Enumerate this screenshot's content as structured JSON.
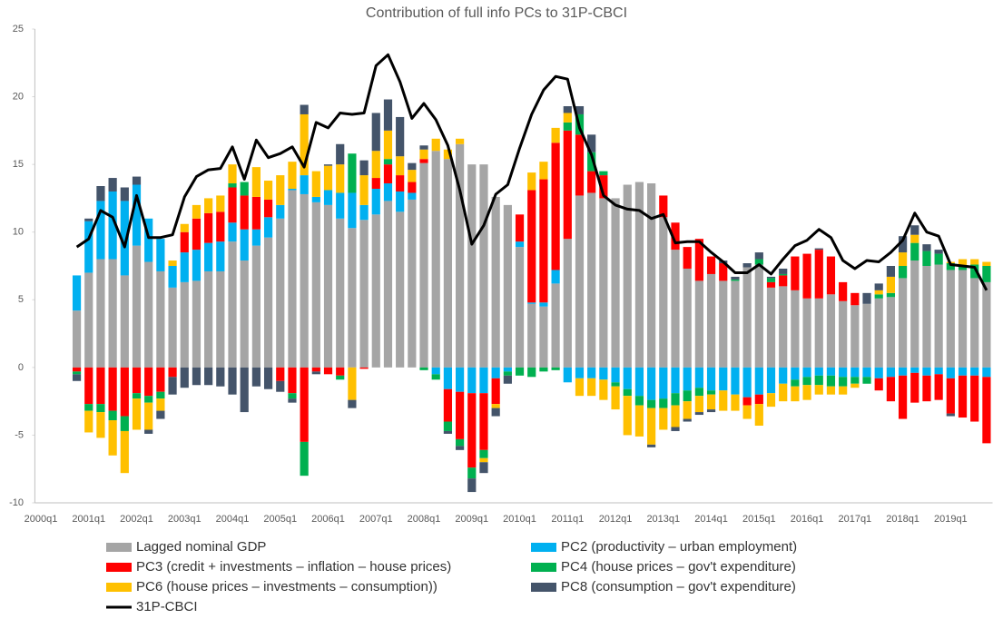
{
  "chart_data": {
    "type": "bar",
    "stacked": true,
    "title": "Contribution of full info PCs to 31P-CBCI",
    "categories": [
      "2000q1",
      null,
      null,
      null,
      "2001q1",
      null,
      null,
      null,
      "2002q1",
      null,
      null,
      null,
      "2003q1",
      null,
      null,
      null,
      "2004q1",
      null,
      null,
      null,
      "2005q1",
      null,
      null,
      null,
      "2006q1",
      null,
      null,
      null,
      "2007q1",
      null,
      null,
      null,
      "2008q1",
      null,
      null,
      null,
      "2009q1",
      null,
      null,
      null,
      "2010q1",
      null,
      null,
      null,
      "2011q1",
      null,
      null,
      null,
      "2012q1",
      null,
      null,
      null,
      "2013q1",
      null,
      null,
      null,
      "2014q1",
      null,
      null,
      null,
      "2015q1",
      null,
      null,
      null,
      "2016q1",
      null,
      null,
      null,
      "2017q1",
      null,
      null,
      null,
      "2018q1",
      null,
      null,
      null,
      "2019q1",
      null,
      null,
      null
    ],
    "ylim": [
      -10,
      25
    ],
    "yticks": [
      -10,
      -5,
      0,
      5,
      10,
      15,
      20,
      25
    ],
    "grid": false,
    "series": [
      {
        "name": "Lagged nominal GDP",
        "color": "#a5a5a5",
        "values": [
          null,
          null,
          null,
          4.2,
          7,
          8,
          8,
          6.8,
          9,
          7.8,
          7.1,
          5.9,
          6.3,
          6.4,
          7.1,
          7.1,
          9.3,
          7.9,
          9,
          9.6,
          11,
          13.1,
          12.8,
          12.2,
          12,
          11,
          10.3,
          10.9,
          11.3,
          12.3,
          11.5,
          12.4,
          15.1,
          16,
          15.4,
          16.5,
          15,
          15,
          12.6,
          12,
          8.9,
          4.7,
          4.5,
          6.2,
          9.5,
          12.7,
          12.9,
          12.5,
          12.5,
          13.5,
          13.7,
          13.6,
          11.1,
          8.7,
          7.3,
          6.4,
          6.9,
          6.4,
          6.4,
          7.4,
          7.6,
          5.9,
          6,
          5.7,
          5.1,
          5.1,
          5.4,
          4.9,
          4.6,
          4.7,
          5.1,
          5.2,
          6.6,
          7.9,
          7.5,
          7.6,
          7.2,
          7.2,
          6.6,
          6.3
        ]
      },
      {
        "name": "PC2 (productivity – urban employment)",
        "color": "#00b0f0",
        "values": [
          null,
          null,
          null,
          2.6,
          3.8,
          4.3,
          5,
          5.5,
          4.5,
          3.2,
          2.4,
          1.6,
          2.2,
          2.3,
          2.1,
          2.2,
          1.4,
          2.3,
          1.2,
          1.5,
          1,
          0.1,
          1.4,
          0.4,
          1.1,
          1.9,
          2.6,
          1.1,
          1.9,
          1.3,
          1.5,
          0.5,
          0,
          -0.5,
          -1.6,
          -1.8,
          -1.9,
          -1.9,
          -0.8,
          -0.3,
          0.4,
          0.1,
          0.3,
          1,
          -1.1,
          -0.8,
          -0.8,
          -0.9,
          -1.1,
          -1.6,
          -2.1,
          -2.4,
          -2.3,
          -1.9,
          -1.7,
          -1.5,
          -1.7,
          -1.7,
          -2,
          -2.2,
          -2,
          -1.9,
          -1.2,
          -0.9,
          -0.7,
          -0.6,
          -0.6,
          -0.7,
          -0.7,
          -0.7,
          -0.8,
          -0.7,
          -0.6,
          -0.4,
          -0.6,
          -0.5,
          -0.8,
          -0.6,
          -0.6,
          -0.7
        ]
      },
      {
        "name": "PC3 (credit + investments – inflation – house prices)",
        "color": "#ff0000",
        "values": [
          null,
          null,
          null,
          -0.3,
          -2.7,
          -2.7,
          -3.2,
          -3.6,
          -1.9,
          -2.1,
          -1.8,
          -0.7,
          1.5,
          2.3,
          2.2,
          2.2,
          2.6,
          2.5,
          2.4,
          1.3,
          -1,
          -1.9,
          -5.5,
          -0.3,
          -0.5,
          -0.6,
          0,
          -0.1,
          0.8,
          1.4,
          1.2,
          0.8,
          0.3,
          0,
          -2.4,
          -3.5,
          -5.5,
          -4.2,
          -1.9,
          0,
          2,
          8.3,
          9.1,
          9.4,
          8,
          4.5,
          1.6,
          1.7,
          0,
          0,
          0,
          0,
          1.6,
          2,
          1.6,
          3.1,
          1.3,
          1.3,
          0,
          -0.6,
          -0.7,
          0.4,
          0.8,
          2.5,
          3.3,
          3.6,
          2.8,
          1.4,
          0.9,
          0,
          -0.9,
          -1.8,
          -3.2,
          -2.2,
          -1.9,
          -1.9,
          -2.6,
          -3.1,
          -3.4,
          -4.9
        ]
      },
      {
        "name": "PC4 (house prices – gov't expenditure)",
        "color": "#00b050",
        "values": [
          null,
          null,
          null,
          -0.2,
          -0.5,
          -0.6,
          -0.7,
          -1.1,
          -0.4,
          -0.5,
          -0.5,
          0,
          0,
          0,
          0,
          0,
          0.3,
          1,
          0,
          0,
          0,
          -0.4,
          -2.5,
          0,
          0,
          -0.3,
          2.9,
          0,
          0,
          0.4,
          0,
          0,
          -0.2,
          -0.4,
          -0.7,
          -0.5,
          -0.8,
          -0.6,
          0,
          -0.3,
          -0.6,
          -0.7,
          -0.3,
          -0.2,
          0.6,
          1.5,
          1.4,
          0.3,
          -0.3,
          -0.5,
          -0.7,
          -0.6,
          -0.7,
          -0.9,
          -0.8,
          -0.6,
          -0.3,
          0,
          0.1,
          0,
          0.4,
          0.3,
          0.1,
          -0.5,
          -0.6,
          -0.7,
          -0.8,
          -0.7,
          -0.5,
          -0.5,
          0.3,
          0.3,
          0.9,
          1.3,
          1.1,
          0.8,
          0.5,
          0.3,
          1,
          1.2
        ]
      },
      {
        "name": "PC6 (house prices – investments – consumption))",
        "color": "#ffc000",
        "values": [
          null,
          null,
          null,
          0,
          -1.6,
          -1.9,
          -2.6,
          -3.1,
          -2.3,
          -2,
          -0.9,
          0.4,
          0.6,
          1,
          1.1,
          1.2,
          1.4,
          0,
          2.2,
          1.4,
          2.2,
          2,
          4.5,
          1.9,
          1.8,
          2.1,
          -2.4,
          2.2,
          2,
          2.1,
          1.4,
          0.9,
          0.7,
          0.9,
          0.7,
          0.4,
          0,
          -0.3,
          -0.3,
          0,
          0,
          1.3,
          1.3,
          1.1,
          0.7,
          -1.3,
          -1.3,
          -1.5,
          -1.7,
          -2.9,
          -2.3,
          -2.7,
          -1.6,
          -1.6,
          -1.3,
          -1.2,
          -1.1,
          -1.5,
          -1.2,
          -1,
          -1.6,
          -1,
          -1.3,
          -1.1,
          -1.1,
          -0.7,
          -0.6,
          -0.6,
          -0.3,
          0,
          0.3,
          1.2,
          1,
          0.6,
          0,
          0,
          0.1,
          0.5,
          0.4,
          0.3
        ]
      },
      {
        "name": "PC8 (consumption – gov't expenditure)",
        "color": "#44546a",
        "values": [
          null,
          null,
          null,
          -0.5,
          0.2,
          1.1,
          1,
          1,
          0.6,
          -0.3,
          -0.6,
          -1.3,
          -1.5,
          -1.3,
          -1.3,
          -1.4,
          -2,
          -3.3,
          -1.4,
          -1.6,
          -0.8,
          -0.3,
          0.7,
          -0.2,
          0.1,
          1.5,
          -0.6,
          1.1,
          2.8,
          2.3,
          2.9,
          0.5,
          0.3,
          0,
          -0.2,
          -0.3,
          -1,
          -0.8,
          -0.6,
          -0.6,
          0,
          0,
          0,
          0,
          0.5,
          0.6,
          1.3,
          0,
          0,
          0,
          0,
          -0.2,
          0,
          -0.3,
          -0.2,
          -0.2,
          -0.2,
          0.2,
          0.2,
          0.3,
          0.5,
          0.1,
          0.4,
          0,
          0,
          0.1,
          0,
          0,
          0,
          0.8,
          0.5,
          0.8,
          1.2,
          0.7,
          0.5,
          0.3,
          -0.2,
          0,
          0,
          0
        ]
      },
      {
        "name": "31P-CBCI",
        "color": "#000000",
        "type": "line",
        "values": [
          null,
          null,
          null,
          8.9,
          9.5,
          11.6,
          11.1,
          8.9,
          12.7,
          9.6,
          9.6,
          9.8,
          12.6,
          14.1,
          14.6,
          14.7,
          16.3,
          13.9,
          16.8,
          15.5,
          15.8,
          16.3,
          14.8,
          18.1,
          17.7,
          18.8,
          18.7,
          18.8,
          22.3,
          23.1,
          21.1,
          18.4,
          19.5,
          18.3,
          16.4,
          13.1,
          9.1,
          10.5,
          12.8,
          13.5,
          16.2,
          18.7,
          20.5,
          21.5,
          21.3,
          17.7,
          15.7,
          12.7,
          12,
          11.7,
          11.6,
          11,
          11.3,
          9.2,
          9.3,
          9.3,
          8.5,
          7.8,
          7,
          7,
          7.6,
          6.9,
          8,
          9,
          9.4,
          10.2,
          9.6,
          7.9,
          7.3,
          7.9,
          7.8,
          8.5,
          9.4,
          11.4,
          10,
          9.7,
          7.6,
          7.5,
          7.4,
          5.7
        ]
      }
    ]
  }
}
